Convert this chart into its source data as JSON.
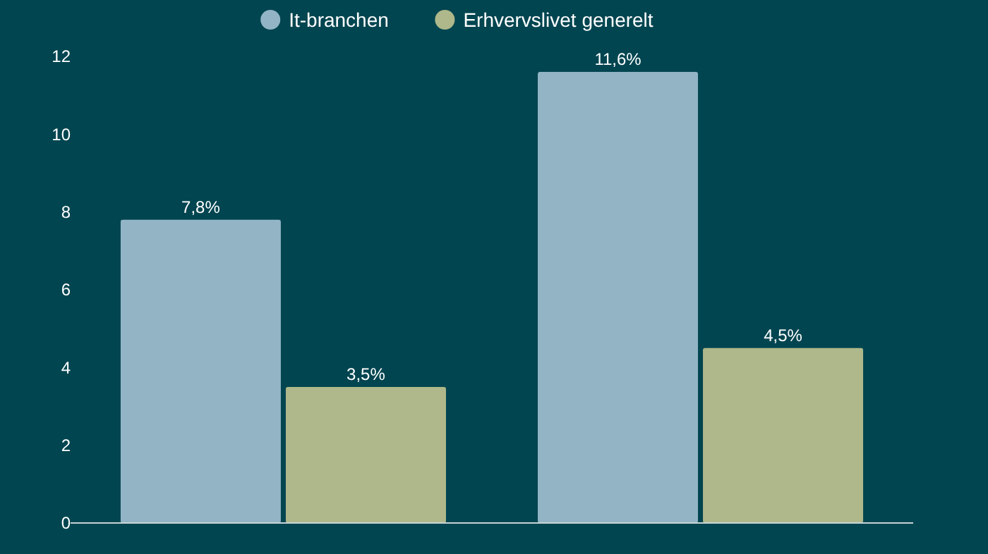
{
  "chart_data": {
    "type": "bar",
    "categories": [
      null,
      null
    ],
    "series": [
      {
        "name": "It-branchen",
        "color": "#92b4c4",
        "values": [
          7.8,
          11.6
        ],
        "value_labels": [
          "7,8%",
          "11,6%"
        ]
      },
      {
        "name": "Erhvervslivet generelt",
        "color": "#aeb88a",
        "values": [
          3.5,
          4.5
        ],
        "value_labels": [
          "3,5%",
          "4,5%"
        ]
      }
    ],
    "ylim": [
      0,
      12
    ],
    "yticks": [
      0,
      2,
      4,
      6,
      8,
      10,
      12
    ],
    "grid": false,
    "legend": "top"
  }
}
